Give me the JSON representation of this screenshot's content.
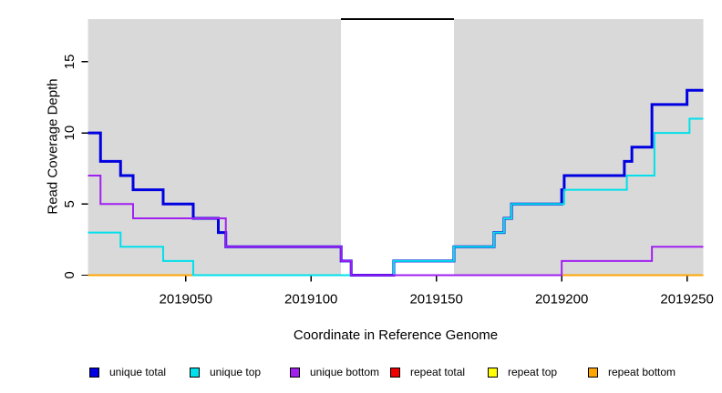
{
  "chart_data": {
    "type": "line",
    "step": true,
    "title": "",
    "xlabel": "Coordinate in Reference Genome",
    "ylabel": "Read Coverage Depth",
    "xlim": [
      2019011,
      2019256.5
    ],
    "ylim": [
      0,
      18
    ],
    "x_ticks": [
      "2019050",
      "2019100",
      "2019150",
      "2019200",
      "2019250"
    ],
    "x_tick_values": [
      2019050,
      2019100,
      2019150,
      2019200,
      2019250
    ],
    "y_ticks": [
      "0",
      "5",
      "10",
      "15"
    ],
    "y_tick_values": [
      0,
      5,
      10,
      15
    ],
    "grid": false,
    "plot_background_color": "#D9D9D9",
    "shaded_regions": [
      [
        2019011,
        2019112
      ],
      [
        2019157,
        2019256.5
      ]
    ],
    "uncovered_gap": {
      "range": [
        2019112,
        2019157
      ],
      "color": "#FFFFFF",
      "top_border_color": "#000000"
    },
    "legend_position": "bottom",
    "series": [
      {
        "name": "repeat total",
        "color": "#EE0000",
        "width": 2,
        "points": [
          [
            2019011,
            0
          ],
          [
            2019256.5,
            0
          ]
        ]
      },
      {
        "name": "repeat top",
        "color": "#FFFF00",
        "width": 2,
        "points": [
          [
            2019011,
            0
          ],
          [
            2019256.5,
            0
          ]
        ]
      },
      {
        "name": "repeat bottom",
        "color": "#FFA500",
        "width": 2,
        "points": [
          [
            2019011,
            0
          ],
          [
            2019256.5,
            0
          ]
        ]
      },
      {
        "name": "unique total",
        "color": "#0000E0",
        "width": 3,
        "points": [
          [
            2019011,
            10
          ],
          [
            2019016,
            8
          ],
          [
            2019024,
            7
          ],
          [
            2019029,
            6
          ],
          [
            2019041,
            5
          ],
          [
            2019053,
            4
          ],
          [
            2019063,
            3
          ],
          [
            2019066,
            2
          ],
          [
            2019112,
            1
          ],
          [
            2019116,
            0
          ],
          [
            2019133,
            1
          ],
          [
            2019157,
            2
          ],
          [
            2019173,
            3
          ],
          [
            2019177,
            4
          ],
          [
            2019180,
            5
          ],
          [
            2019200,
            6
          ],
          [
            2019201,
            7
          ],
          [
            2019225,
            8
          ],
          [
            2019228,
            9
          ],
          [
            2019236,
            12
          ],
          [
            2019250,
            13
          ],
          [
            2019256.5,
            13
          ]
        ]
      },
      {
        "name": "unique top",
        "color": "#00E0EA",
        "width": 2,
        "points": [
          [
            2019011,
            3
          ],
          [
            2019024,
            2
          ],
          [
            2019041,
            1
          ],
          [
            2019053,
            0
          ],
          [
            2019133,
            1
          ],
          [
            2019157,
            2
          ],
          [
            2019173,
            3
          ],
          [
            2019177,
            4
          ],
          [
            2019180,
            5
          ],
          [
            2019201,
            6
          ],
          [
            2019226,
            7
          ],
          [
            2019237,
            10
          ],
          [
            2019251,
            11
          ],
          [
            2019256.5,
            11
          ]
        ]
      },
      {
        "name": "unique bottom",
        "color": "#A020F0",
        "width": 2,
        "points": [
          [
            2019011,
            7
          ],
          [
            2019016,
            5
          ],
          [
            2019029,
            4
          ],
          [
            2019066,
            2
          ],
          [
            2019112,
            1
          ],
          [
            2019116,
            0
          ],
          [
            2019200,
            1
          ],
          [
            2019236,
            2
          ],
          [
            2019256.5,
            2
          ]
        ]
      }
    ]
  },
  "legend": {
    "items": [
      {
        "label": "unique total",
        "color": "#0000E0",
        "x": 98
      },
      {
        "label": "unique top",
        "color": "#00E0EA",
        "x": 208
      },
      {
        "label": "unique bottom",
        "color": "#A020F0",
        "x": 318
      },
      {
        "label": "repeat total",
        "color": "#EE0000",
        "x": 428
      },
      {
        "label": "repeat top",
        "color": "#FFFF00",
        "x": 535
      },
      {
        "label": "repeat bottom",
        "color": "#FFA500",
        "x": 645
      }
    ]
  }
}
